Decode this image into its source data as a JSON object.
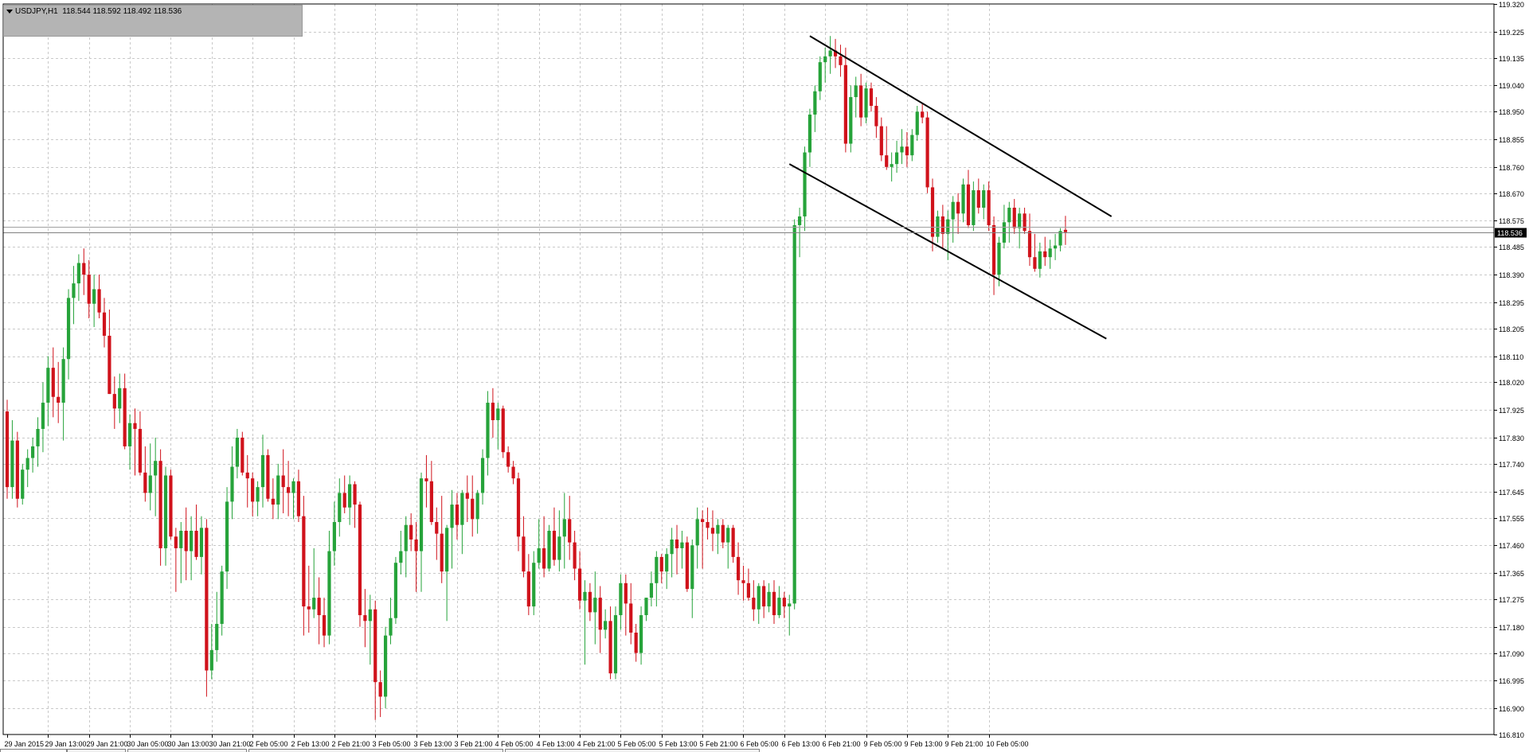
{
  "symbol_info": {
    "label": "USDJPY,H1  118.544 118.592 118.492 118.536"
  },
  "colors": {
    "bull": "#26a33a",
    "bear": "#d0121b",
    "grid": "#c9c9c9",
    "axis": "#000000",
    "trendline": "#000000"
  },
  "chart_data": {
    "type": "candlestick",
    "symbol": "USDJPY",
    "timeframe": "H1",
    "ylim": [
      16.81,
      119.32
    ],
    "y_ticks": [
      "119.320",
      "119.225",
      "119.135",
      "119.040",
      "118.950",
      "118.855",
      "118.760",
      "118.670",
      "118.575",
      "118.485",
      "118.390",
      "118.295",
      "118.205",
      "118.110",
      "118.020",
      "117.925",
      "117.830",
      "117.740",
      "117.645",
      "117.555",
      "117.460",
      "117.365",
      "117.275",
      "117.180",
      "117.090",
      "116.995",
      "116.900",
      "116.810"
    ],
    "x_ticks": [
      "29 Jan 2015",
      "29 Jan 13:00",
      "29 Jan 21:00",
      "30 Jan 05:00",
      "30 Jan 13:00",
      "30 Jan 21:00",
      "2 Feb 05:00",
      "2 Feb 13:00",
      "2 Feb 21:00",
      "3 Feb 05:00",
      "3 Feb 13:00",
      "3 Feb 21:00",
      "4 Feb 05:00",
      "4 Feb 13:00",
      "4 Feb 21:00",
      "5 Feb 05:00",
      "5 Feb 13:00",
      "5 Feb 21:00",
      "6 Feb 05:00",
      "6 Feb 13:00",
      "6 Feb 21:00",
      "9 Feb 05:00",
      "9 Feb 13:00",
      "9 Feb 21:00",
      "10 Feb 05:00"
    ],
    "current_price": "118.536",
    "current_price_value": 118.536,
    "bid_ask_line_value": 118.555,
    "candles": [
      [
        117.92,
        117.96,
        117.62,
        117.66
      ],
      [
        117.66,
        117.89,
        117.62,
        117.82
      ],
      [
        117.82,
        117.85,
        117.59,
        117.62
      ],
      [
        117.62,
        117.74,
        117.6,
        117.72
      ],
      [
        117.72,
        117.79,
        117.66,
        117.76
      ],
      [
        117.76,
        117.83,
        117.71,
        117.8
      ],
      [
        117.8,
        117.9,
        117.73,
        117.86
      ],
      [
        117.86,
        118.02,
        117.78,
        117.95
      ],
      [
        117.95,
        118.11,
        117.87,
        118.07
      ],
      [
        118.07,
        118.14,
        117.9,
        117.97
      ],
      [
        117.97,
        118.09,
        117.88,
        117.95
      ],
      [
        117.95,
        118.14,
        117.82,
        118.1
      ],
      [
        118.1,
        118.34,
        118.03,
        118.31
      ],
      [
        118.31,
        118.42,
        118.22,
        118.36
      ],
      [
        118.36,
        118.46,
        118.3,
        118.43
      ],
      [
        118.43,
        118.48,
        118.32,
        118.39
      ],
      [
        118.39,
        118.44,
        118.24,
        118.29
      ],
      [
        118.29,
        118.39,
        118.21,
        118.34
      ],
      [
        118.34,
        118.39,
        118.24,
        118.26
      ],
      [
        118.26,
        118.31,
        118.14,
        118.18
      ],
      [
        118.18,
        118.27,
        117.98,
        117.98
      ],
      [
        117.98,
        118.04,
        117.86,
        117.93
      ],
      [
        117.93,
        118.05,
        117.88,
        118.0
      ],
      [
        118.0,
        118.05,
        117.79,
        117.8
      ],
      [
        117.8,
        117.91,
        117.72,
        117.88
      ],
      [
        117.88,
        117.93,
        117.7,
        117.86
      ],
      [
        117.86,
        117.92,
        117.7,
        117.71
      ],
      [
        117.71,
        117.8,
        117.61,
        117.64
      ],
      [
        117.64,
        117.81,
        117.58,
        117.7
      ],
      [
        117.7,
        117.83,
        117.56,
        117.75
      ],
      [
        117.75,
        117.79,
        117.39,
        117.45
      ],
      [
        117.45,
        117.73,
        117.39,
        117.7
      ],
      [
        117.7,
        117.72,
        117.48,
        117.49
      ],
      [
        117.49,
        117.52,
        117.3,
        117.45
      ],
      [
        117.45,
        117.54,
        117.33,
        117.51
      ],
      [
        117.51,
        117.59,
        117.34,
        117.44
      ],
      [
        117.44,
        117.56,
        117.34,
        117.51
      ],
      [
        117.51,
        117.6,
        117.41,
        117.42
      ],
      [
        117.42,
        117.56,
        117.36,
        117.52
      ],
      [
        117.52,
        117.55,
        116.94,
        117.03
      ],
      [
        117.03,
        117.19,
        117.0,
        117.1
      ],
      [
        117.1,
        117.3,
        117.06,
        117.19
      ],
      [
        117.19,
        117.39,
        117.15,
        117.37
      ],
      [
        117.37,
        117.66,
        117.31,
        117.61
      ],
      [
        117.61,
        117.8,
        117.55,
        117.73
      ],
      [
        117.73,
        117.86,
        117.69,
        117.83
      ],
      [
        117.83,
        117.85,
        117.7,
        117.71
      ],
      [
        117.71,
        117.77,
        117.59,
        117.69
      ],
      [
        117.69,
        117.71,
        117.56,
        117.61
      ],
      [
        117.61,
        117.68,
        117.56,
        117.66
      ],
      [
        117.66,
        117.84,
        117.59,
        117.77
      ],
      [
        117.77,
        117.79,
        117.61,
        117.62
      ],
      [
        117.62,
        117.69,
        117.55,
        117.6
      ],
      [
        117.6,
        117.74,
        117.55,
        117.7
      ],
      [
        117.7,
        117.79,
        117.57,
        117.66
      ],
      [
        117.66,
        117.75,
        117.56,
        117.64
      ],
      [
        117.64,
        117.69,
        117.55,
        117.68
      ],
      [
        117.68,
        117.72,
        117.54,
        117.56
      ],
      [
        117.56,
        117.63,
        117.15,
        117.25
      ],
      [
        117.25,
        117.39,
        117.16,
        117.24
      ],
      [
        117.24,
        117.45,
        117.21,
        117.28
      ],
      [
        117.28,
        117.35,
        117.12,
        117.22
      ],
      [
        117.22,
        117.28,
        117.11,
        117.15
      ],
      [
        117.15,
        117.51,
        117.12,
        117.44
      ],
      [
        117.44,
        117.61,
        117.39,
        117.54
      ],
      [
        117.54,
        117.69,
        117.49,
        117.64
      ],
      [
        117.64,
        117.7,
        117.57,
        117.59
      ],
      [
        117.59,
        117.7,
        117.53,
        117.67
      ],
      [
        117.67,
        117.68,
        117.52,
        117.6
      ],
      [
        117.6,
        117.61,
        117.18,
        117.22
      ],
      [
        117.22,
        117.31,
        117.11,
        117.2
      ],
      [
        117.2,
        117.29,
        117.05,
        117.24
      ],
      [
        117.24,
        117.27,
        116.86,
        116.99
      ],
      [
        116.99,
        117.03,
        116.87,
        116.94
      ],
      [
        116.94,
        117.18,
        116.9,
        117.15
      ],
      [
        117.15,
        117.28,
        117.12,
        117.21
      ],
      [
        117.21,
        117.42,
        117.19,
        117.4
      ],
      [
        117.4,
        117.51,
        117.36,
        117.44
      ],
      [
        117.44,
        117.56,
        117.35,
        117.53
      ],
      [
        117.53,
        117.57,
        117.44,
        117.48
      ],
      [
        117.48,
        117.54,
        117.3,
        117.44
      ],
      [
        117.44,
        117.71,
        117.3,
        117.69
      ],
      [
        117.69,
        117.77,
        117.59,
        117.68
      ],
      [
        117.68,
        117.75,
        117.53,
        117.54
      ],
      [
        117.54,
        117.59,
        117.41,
        117.5
      ],
      [
        117.5,
        117.63,
        117.33,
        117.37
      ],
      [
        117.37,
        117.53,
        117.2,
        117.52
      ],
      [
        117.52,
        117.65,
        117.38,
        117.6
      ],
      [
        117.6,
        117.64,
        117.48,
        117.53
      ],
      [
        117.53,
        117.65,
        117.43,
        117.64
      ],
      [
        117.64,
        117.7,
        117.54,
        117.62
      ],
      [
        117.62,
        117.7,
        117.49,
        117.55
      ],
      [
        117.55,
        117.65,
        117.5,
        117.64
      ],
      [
        117.64,
        117.79,
        117.6,
        117.76
      ],
      [
        117.76,
        117.99,
        117.7,
        117.95
      ],
      [
        117.95,
        118.0,
        117.83,
        117.89
      ],
      [
        117.89,
        117.95,
        117.79,
        117.93
      ],
      [
        117.93,
        117.94,
        117.76,
        117.78
      ],
      [
        117.78,
        117.8,
        117.71,
        117.73
      ],
      [
        117.73,
        117.75,
        117.67,
        117.69
      ],
      [
        117.69,
        117.71,
        117.44,
        117.49
      ],
      [
        117.49,
        117.56,
        117.35,
        117.37
      ],
      [
        117.37,
        117.43,
        117.22,
        117.25
      ],
      [
        117.25,
        117.44,
        117.22,
        117.4
      ],
      [
        117.4,
        117.55,
        117.38,
        117.45
      ],
      [
        117.45,
        117.56,
        117.35,
        117.38
      ],
      [
        117.38,
        117.53,
        117.37,
        117.51
      ],
      [
        117.51,
        117.59,
        117.39,
        117.41
      ],
      [
        117.41,
        117.58,
        117.37,
        117.49
      ],
      [
        117.49,
        117.64,
        117.38,
        117.55
      ],
      [
        117.55,
        117.63,
        117.41,
        117.47
      ],
      [
        117.47,
        117.51,
        117.34,
        117.38
      ],
      [
        117.38,
        117.44,
        117.24,
        117.27
      ],
      [
        117.27,
        117.34,
        117.05,
        117.3
      ],
      [
        117.3,
        117.33,
        117.2,
        117.23
      ],
      [
        117.23,
        117.37,
        117.12,
        117.28
      ],
      [
        117.28,
        117.32,
        117.09,
        117.17
      ],
      [
        117.17,
        117.24,
        117.14,
        117.2
      ],
      [
        117.2,
        117.25,
        117.0,
        117.02
      ],
      [
        117.02,
        117.25,
        117.0,
        117.22
      ],
      [
        117.22,
        117.36,
        117.17,
        117.33
      ],
      [
        117.33,
        117.36,
        117.15,
        117.26
      ],
      [
        117.26,
        117.33,
        117.12,
        117.16
      ],
      [
        117.16,
        117.19,
        117.06,
        117.09
      ],
      [
        117.09,
        117.25,
        117.05,
        117.22
      ],
      [
        117.22,
        117.28,
        117.2,
        117.28
      ],
      [
        117.28,
        117.37,
        117.25,
        117.33
      ],
      [
        117.33,
        117.44,
        117.25,
        117.42
      ],
      [
        117.42,
        117.43,
        117.33,
        117.37
      ],
      [
        117.37,
        117.45,
        117.31,
        117.43
      ],
      [
        117.43,
        117.52,
        117.35,
        117.48
      ],
      [
        117.48,
        117.53,
        117.36,
        117.45
      ],
      [
        117.45,
        117.51,
        117.38,
        117.47
      ],
      [
        117.47,
        117.49,
        117.3,
        117.31
      ],
      [
        117.31,
        117.48,
        117.21,
        117.46
      ],
      [
        117.46,
        117.59,
        117.38,
        117.55
      ],
      [
        117.55,
        117.58,
        117.38,
        117.54
      ],
      [
        117.54,
        117.59,
        117.48,
        117.52
      ],
      [
        117.52,
        117.58,
        117.44,
        117.5
      ],
      [
        117.5,
        117.55,
        117.43,
        117.53
      ],
      [
        117.53,
        117.55,
        117.45,
        117.47
      ],
      [
        117.47,
        117.53,
        117.38,
        117.52
      ],
      [
        117.52,
        117.53,
        117.4,
        117.42
      ],
      [
        117.42,
        117.47,
        117.29,
        117.34
      ],
      [
        117.34,
        117.39,
        117.27,
        117.33
      ],
      [
        117.33,
        117.38,
        117.27,
        117.28
      ],
      [
        117.28,
        117.34,
        117.2,
        117.24
      ],
      [
        117.24,
        117.33,
        117.19,
        117.32
      ],
      [
        117.32,
        117.34,
        117.21,
        117.25
      ],
      [
        117.25,
        117.33,
        117.23,
        117.3
      ],
      [
        117.3,
        117.34,
        117.19,
        117.22
      ],
      [
        117.22,
        117.32,
        117.21,
        117.28
      ],
      [
        117.28,
        117.3,
        117.21,
        117.25
      ],
      [
        117.25,
        117.29,
        117.15,
        117.26
      ],
      [
        117.26,
        118.58,
        117.24,
        118.56
      ],
      [
        118.56,
        118.62,
        118.45,
        118.59
      ],
      [
        118.59,
        118.83,
        118.54,
        118.81
      ],
      [
        118.81,
        118.96,
        118.76,
        118.94
      ],
      [
        118.94,
        119.04,
        118.88,
        119.02
      ],
      [
        119.02,
        119.14,
        118.99,
        119.12
      ],
      [
        119.12,
        119.17,
        119.05,
        119.14
      ],
      [
        119.14,
        119.21,
        119.08,
        119.16
      ],
      [
        119.16,
        119.2,
        119.1,
        119.14
      ],
      [
        119.14,
        119.18,
        119.07,
        119.11
      ],
      [
        119.11,
        119.17,
        118.81,
        118.84
      ],
      [
        118.84,
        119.04,
        118.81,
        119.0
      ],
      [
        119.0,
        119.07,
        118.93,
        119.04
      ],
      [
        119.04,
        119.08,
        118.9,
        118.93
      ],
      [
        118.93,
        119.05,
        118.91,
        119.03
      ],
      [
        119.03,
        119.05,
        118.95,
        118.97
      ],
      [
        118.97,
        119.0,
        118.86,
        118.9
      ],
      [
        118.9,
        118.93,
        118.78,
        118.8
      ],
      [
        118.8,
        118.9,
        118.75,
        118.76
      ],
      [
        118.76,
        118.81,
        118.71,
        118.77
      ],
      [
        118.77,
        118.85,
        118.74,
        118.81
      ],
      [
        118.81,
        118.89,
        118.77,
        118.83
      ],
      [
        118.83,
        118.88,
        118.76,
        118.8
      ],
      [
        118.8,
        118.89,
        118.78,
        118.87
      ],
      [
        118.87,
        118.97,
        118.85,
        118.95
      ],
      [
        118.95,
        118.98,
        118.91,
        118.93
      ],
      [
        118.93,
        118.95,
        118.67,
        118.69
      ],
      [
        118.69,
        118.72,
        118.47,
        118.52
      ],
      [
        118.52,
        118.61,
        118.5,
        118.59
      ],
      [
        118.59,
        118.63,
        118.48,
        118.53
      ],
      [
        118.53,
        118.61,
        118.44,
        118.58
      ],
      [
        118.58,
        118.66,
        118.5,
        118.64
      ],
      [
        118.64,
        118.67,
        118.53,
        118.6
      ],
      [
        118.6,
        118.72,
        118.57,
        118.7
      ],
      [
        118.7,
        118.75,
        118.55,
        118.56
      ],
      [
        118.56,
        118.71,
        118.54,
        118.68
      ],
      [
        118.68,
        118.72,
        118.6,
        118.62
      ],
      [
        118.62,
        118.7,
        118.58,
        118.68
      ],
      [
        118.68,
        118.71,
        118.54,
        118.56
      ],
      [
        118.56,
        118.59,
        118.32,
        118.39
      ],
      [
        118.39,
        118.52,
        118.35,
        118.5
      ],
      [
        118.5,
        118.63,
        118.48,
        118.57
      ],
      [
        118.57,
        118.64,
        118.5,
        118.62
      ],
      [
        118.62,
        118.65,
        118.53,
        118.55
      ],
      [
        118.55,
        118.62,
        118.48,
        118.6
      ],
      [
        118.6,
        118.62,
        118.53,
        118.54
      ],
      [
        118.54,
        118.6,
        118.42,
        118.45
      ],
      [
        118.45,
        118.53,
        118.4,
        118.41
      ],
      [
        118.41,
        118.5,
        118.38,
        118.47
      ],
      [
        118.47,
        118.52,
        118.42,
        118.45
      ],
      [
        118.45,
        118.51,
        118.41,
        118.48
      ],
      [
        118.48,
        118.53,
        118.44,
        118.49
      ],
      [
        118.49,
        118.55,
        118.47,
        118.54
      ],
      [
        118.544,
        118.592,
        118.492,
        118.536
      ]
    ],
    "trendlines": [
      {
        "from": {
          "x": "6 Feb 18:00",
          "y": 119.21
        },
        "to": {
          "x": "10 Feb 09:00",
          "y": 118.59
        }
      },
      {
        "from": {
          "x": "6 Feb 14:00",
          "y": 118.77
        },
        "to": {
          "x": "10 Feb 08:00",
          "y": 118.17
        }
      }
    ]
  }
}
